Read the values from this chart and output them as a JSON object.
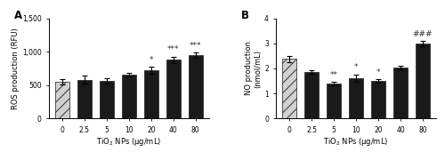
{
  "panel_A": {
    "categories": [
      "0",
      "2.5",
      "5",
      "10",
      "20",
      "40",
      "80"
    ],
    "values": [
      555,
      580,
      565,
      655,
      720,
      880,
      950
    ],
    "errors": [
      40,
      60,
      35,
      30,
      55,
      45,
      35
    ],
    "bar_colors": [
      "#d0d0d0",
      "#1a1a1a",
      "#1a1a1a",
      "#1a1a1a",
      "#1a1a1a",
      "#1a1a1a",
      "#1a1a1a"
    ],
    "hatch": [
      "///",
      "",
      "",
      "",
      "",
      "",
      ""
    ],
    "ylabel": "ROS production (RFU)",
    "xlabel": "TiO$_2$ NPs (μg/mL)",
    "title": "A",
    "ylim": [
      0,
      1500
    ],
    "yticks": [
      0,
      500,
      1000,
      1500
    ],
    "yticklabels": [
      "0",
      "500",
      "1,000",
      "1,500"
    ],
    "annotations": [
      {
        "bar_idx": 4,
        "text": "*"
      },
      {
        "bar_idx": 5,
        "text": "***"
      },
      {
        "bar_idx": 6,
        "text": "***"
      }
    ]
  },
  "panel_B": {
    "categories": [
      "0",
      "2.5",
      "5",
      "10",
      "20",
      "40",
      "80"
    ],
    "values": [
      2.38,
      1.85,
      1.38,
      1.62,
      1.5,
      2.02,
      3.0
    ],
    "errors": [
      0.12,
      0.08,
      0.07,
      0.14,
      0.07,
      0.07,
      0.1
    ],
    "bar_colors": [
      "#d0d0d0",
      "#1a1a1a",
      "#1a1a1a",
      "#1a1a1a",
      "#1a1a1a",
      "#1a1a1a",
      "#1a1a1a"
    ],
    "hatch": [
      "///",
      "",
      "",
      "",
      "",
      "",
      ""
    ],
    "ylabel": "NO production\n(nmol/mL)",
    "xlabel": "TiO$_2$ NPs (μg/mL)",
    "title": "B",
    "ylim": [
      0,
      4
    ],
    "yticks": [
      0,
      1,
      2,
      3,
      4
    ],
    "yticklabels": [
      "0",
      "1",
      "2",
      "3",
      "4"
    ],
    "annotations": [
      {
        "bar_idx": 2,
        "text": "**"
      },
      {
        "bar_idx": 3,
        "text": "*"
      },
      {
        "bar_idx": 4,
        "text": "*"
      },
      {
        "bar_idx": 6,
        "text": "###"
      }
    ]
  },
  "fig_background": "#ffffff",
  "bar_edge_color": "#1a1a1a",
  "bar_width": 0.65,
  "fontsize_label": 6.0,
  "fontsize_tick": 5.5,
  "fontsize_annot": 6.5,
  "fontsize_panel": 8.5
}
